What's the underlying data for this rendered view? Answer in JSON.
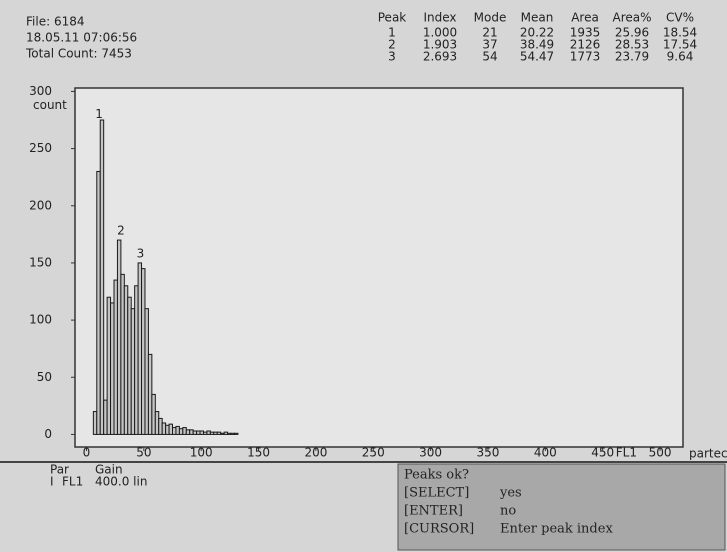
{
  "header": {
    "file": "File: 6184",
    "datetime": "18.05.11 07:06:56",
    "total": "Total Count: 7453"
  },
  "stats": {
    "columns": [
      "Peak",
      "Index",
      "Mode",
      "Mean",
      "Area",
      "Area%",
      "CV%"
    ],
    "rows": [
      [
        "1",
        "1.000",
        "21",
        "20.22",
        "1935",
        "25.96",
        "18.54"
      ],
      [
        "2",
        "1.903",
        "37",
        "38.49",
        "2126",
        "28.53",
        "17.54"
      ],
      [
        "3",
        "2.693",
        "54",
        "54.47",
        "1773",
        "23.79",
        "9.64"
      ]
    ]
  },
  "chart_data": {
    "type": "histogram",
    "y_label": "count",
    "x_label": "FL1",
    "brand": "partec",
    "bins": [
      6,
      9,
      12,
      15,
      18,
      21,
      24,
      27,
      30,
      33,
      36,
      39,
      42,
      45,
      48,
      51,
      54,
      57,
      60,
      63,
      66,
      69,
      72,
      75,
      78,
      81,
      84,
      87,
      90,
      93,
      96,
      99,
      102,
      105,
      108,
      111,
      114,
      117,
      120,
      123,
      126,
      129,
      132
    ],
    "values": [
      20,
      230,
      275,
      30,
      120,
      115,
      135,
      170,
      140,
      130,
      120,
      110,
      130,
      150,
      145,
      110,
      70,
      35,
      20,
      14,
      10,
      8,
      9,
      6,
      7,
      5,
      6,
      4,
      4,
      3,
      3,
      3,
      2,
      3,
      2,
      2,
      2,
      1,
      2,
      1,
      1,
      1
    ],
    "color": "#1a1a1a",
    "fill": "#c4c4c4",
    "xlim": [
      -10,
      520
    ],
    "ylim": [
      -11,
      303
    ],
    "xticks": [
      0,
      50,
      100,
      150,
      200,
      250,
      300,
      350,
      400,
      450,
      500
    ],
    "yticks": [
      0,
      50,
      100,
      150,
      200,
      250,
      300
    ],
    "annotations": [
      {
        "text": "1",
        "x": 11,
        "y": 280
      },
      {
        "text": "2",
        "x": 30,
        "y": 178
      },
      {
        "text": "3",
        "x": 47,
        "y": 158
      }
    ]
  },
  "params": {
    "header": [
      "Par",
      "Gain"
    ],
    "row": [
      "I",
      "FL1",
      "400.0 lin"
    ]
  },
  "dialog": {
    "title": "Peaks ok?",
    "options": [
      [
        "[SELECT]",
        "yes"
      ],
      [
        "[ENTER]",
        "no"
      ],
      [
        "[CURSOR]",
        "Enter peak index"
      ]
    ]
  }
}
